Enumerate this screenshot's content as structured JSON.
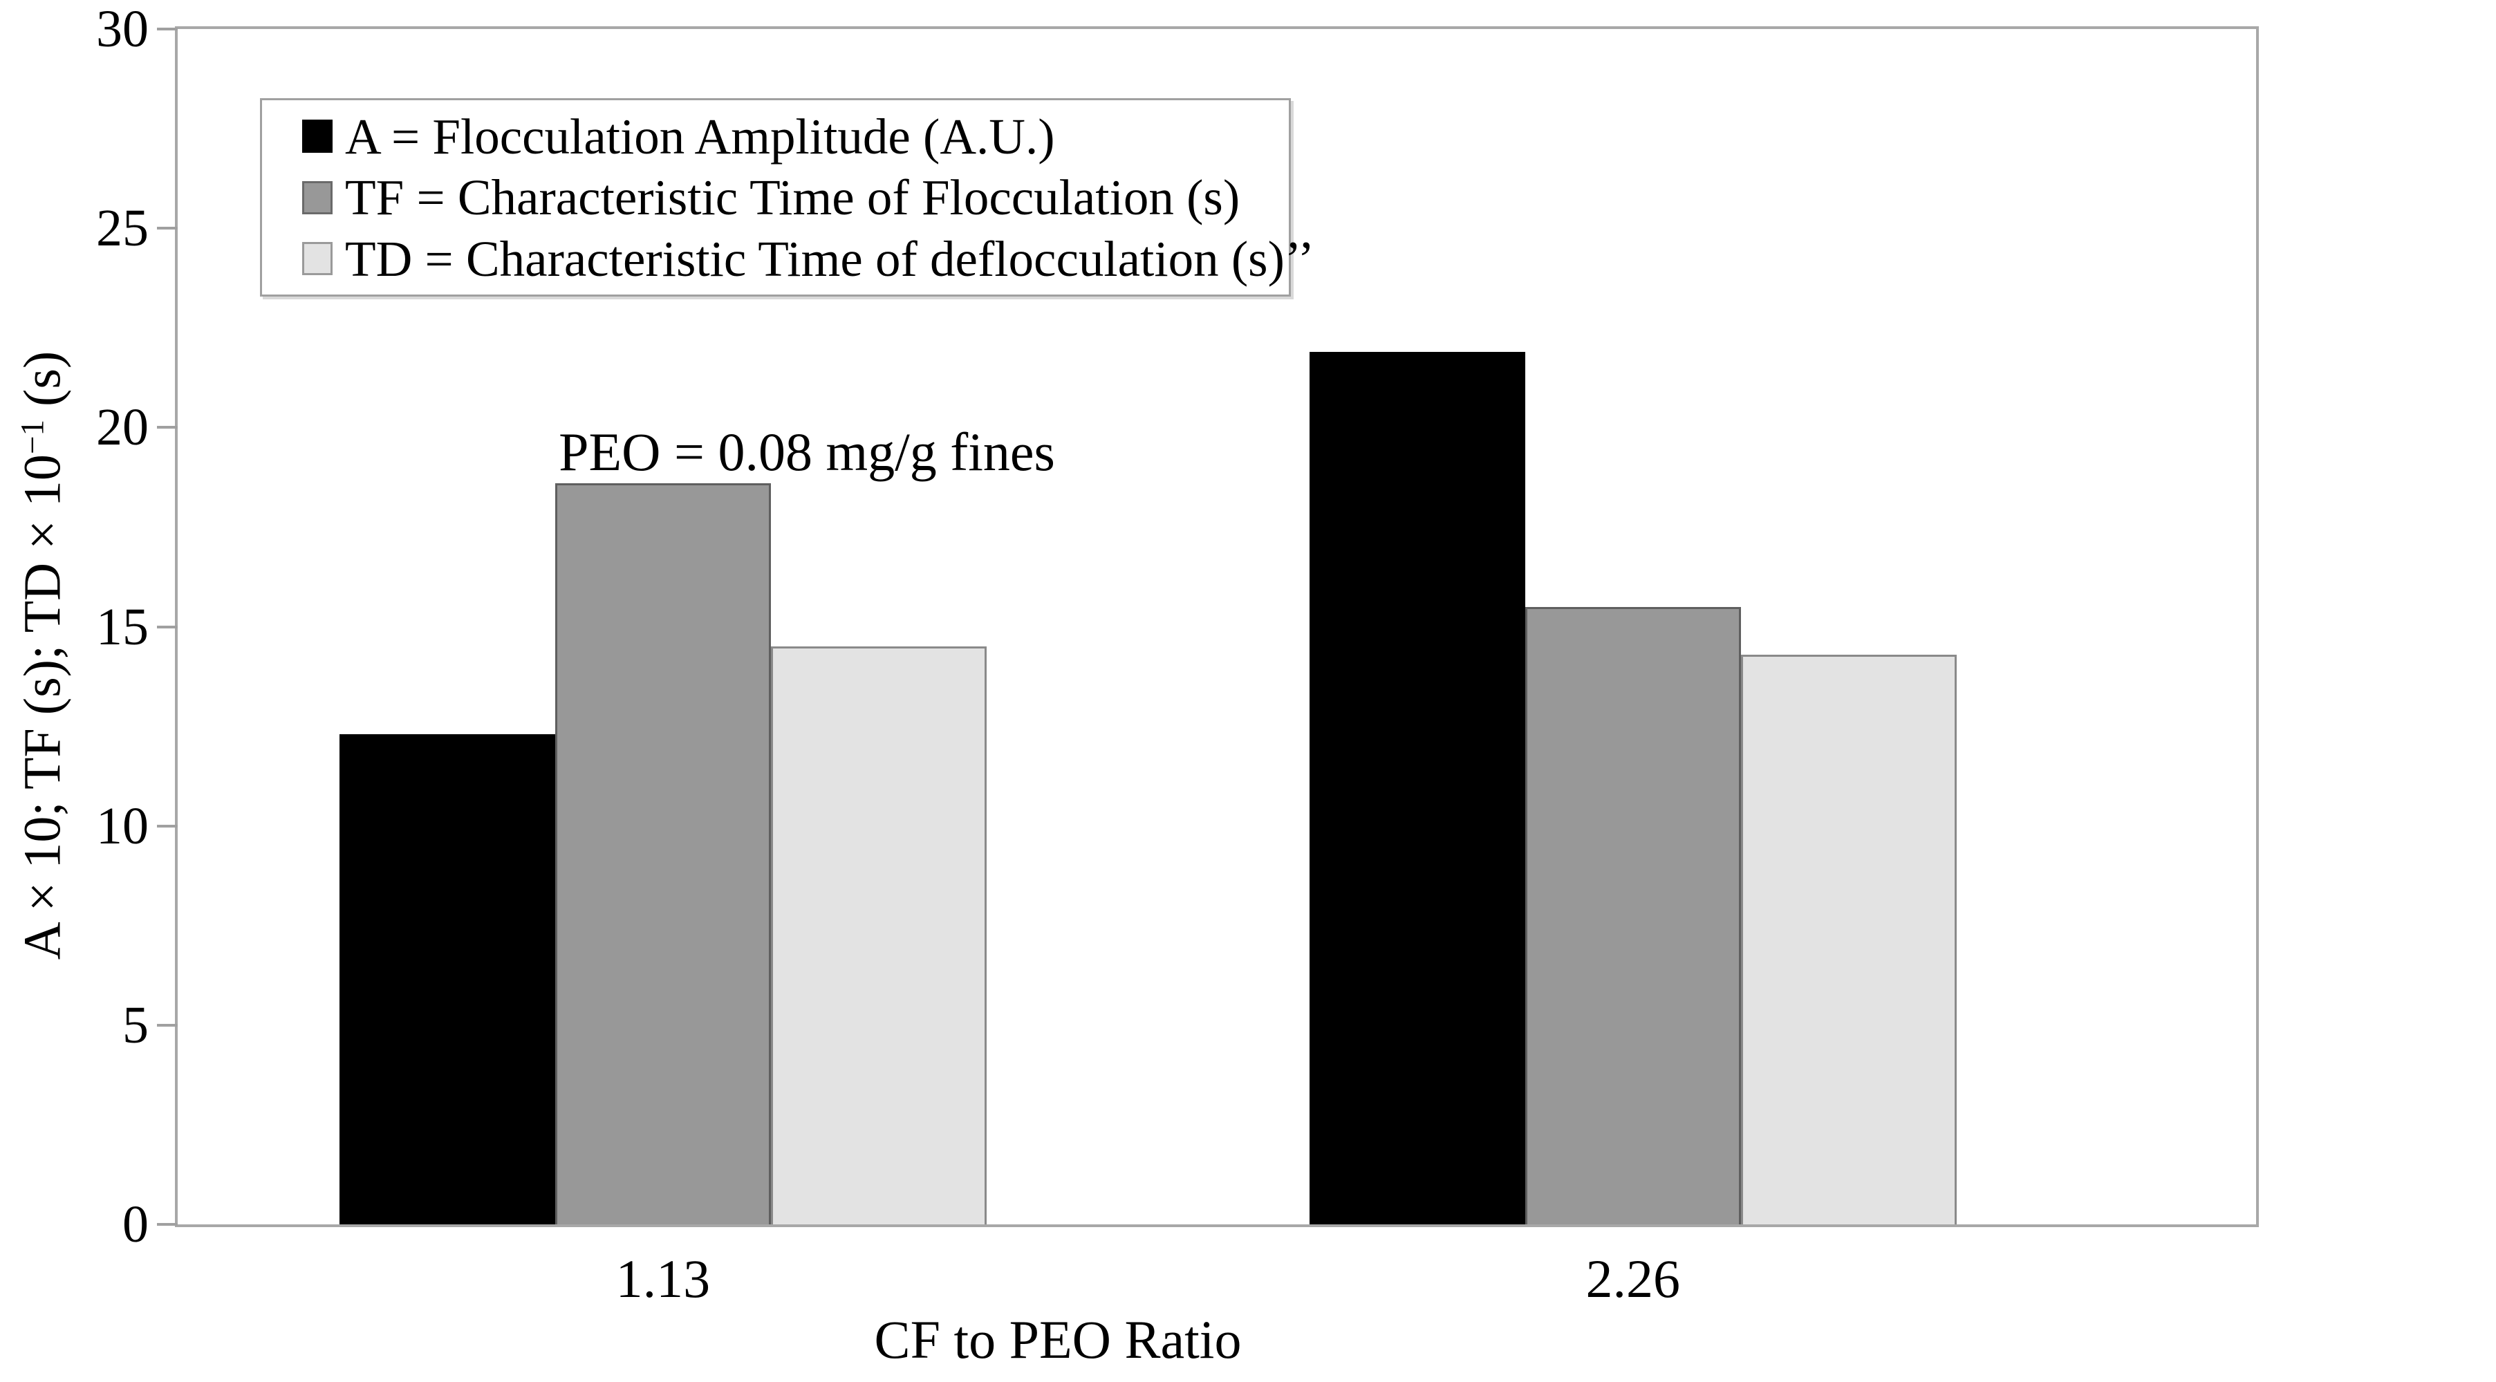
{
  "figure": {
    "annotation": "PEO = 0.08 mg/g fines",
    "x_axis_title": "CF to PEO Ratio",
    "y_axis_label": {
      "main": "A × 10; TF (s); TD × 10",
      "sup": "−1",
      "tail": " (s)"
    },
    "background_color": "#ffffff",
    "spine_color": "#a8a8a8"
  },
  "legend": {
    "items": [
      {
        "label": "A = Flocculation Amplitude (A.U.)",
        "color": "#000000",
        "border": "#000000"
      },
      {
        "label": "TF = Characteristic Time of Flocculation (s)",
        "color": "#989898",
        "border": "#6a6a6a"
      },
      {
        "label": "TD = Characteristic Time of deflocculation (s)’’",
        "color": "#e3e3e3",
        "border": "#9a9a9a"
      }
    ]
  },
  "chart_data": {
    "type": "bar",
    "title": "",
    "xlabel": "CF to PEO Ratio",
    "ylabel": "A × 10; TF (s); TD × 10⁻¹ (s)",
    "categories": [
      "1.13",
      "2.26"
    ],
    "series": [
      {
        "name": "A",
        "legend": "A = Flocculation Amplitude (A.U.)",
        "values": [
          12.3,
          21.9
        ],
        "color": "#000000",
        "border": "#000000"
      },
      {
        "name": "TF",
        "legend": "TF = Characteristic Time of Flocculation (s)",
        "values": [
          18.6,
          15.5
        ],
        "color": "#989898",
        "border": "#5f5f5f"
      },
      {
        "name": "TD",
        "legend": "TD = Characteristic Time of deflocculation (s)’’",
        "values": [
          14.5,
          14.3
        ],
        "color": "#e3e3e3",
        "border": "#8a8a8a"
      }
    ],
    "ylim": [
      0,
      30
    ],
    "yticks": [
      30,
      25,
      20,
      15,
      10,
      5,
      0
    ],
    "grid": false,
    "legend_position": "upper-left-inside",
    "annotation": "PEO = 0.08 mg/g fines",
    "group_layout": {
      "group_left_pct": [
        7.79,
        54.46
      ],
      "group_width_pct": 31.12
    }
  }
}
